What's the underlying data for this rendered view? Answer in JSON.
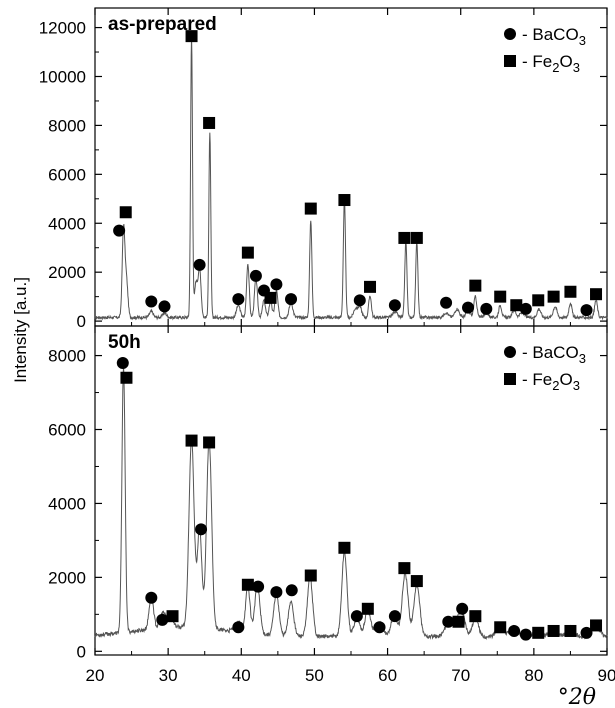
{
  "chart_data": [
    {
      "type": "line",
      "title": "as-prepared",
      "xlabel": "°2θ",
      "ylabel": "Intensity [a.u.]",
      "xlim": [
        20,
        90
      ],
      "ylim": [
        -200,
        12800
      ],
      "yticks": [
        0,
        2000,
        4000,
        6000,
        8000,
        10000,
        12000
      ],
      "grid": false,
      "legend_position": "top-right",
      "series": [
        {
          "type": "line",
          "baseline": 150,
          "peaks": [
            [
              23.9,
              3600,
              0.18
            ],
            [
              24.3,
              1500,
              0.2
            ],
            [
              27.7,
              250,
              0.25
            ],
            [
              29.5,
              200,
              0.25
            ],
            [
              33.2,
              11500,
              0.13
            ],
            [
              33.8,
              1400,
              0.2
            ],
            [
              34.3,
              2000,
              0.2
            ],
            [
              35.7,
              7600,
              0.13
            ],
            [
              39.6,
              500,
              0.25
            ],
            [
              40.9,
              2200,
              0.18
            ],
            [
              42.0,
              1600,
              0.2
            ],
            [
              43.1,
              700,
              0.2
            ],
            [
              44.0,
              650,
              0.2
            ],
            [
              44.8,
              1100,
              0.2
            ],
            [
              46.8,
              600,
              0.25
            ],
            [
              49.5,
              4000,
              0.15
            ],
            [
              54.1,
              4800,
              0.15
            ],
            [
              55.6,
              350,
              0.25
            ],
            [
              56.2,
              450,
              0.25
            ],
            [
              57.6,
              900,
              0.18
            ],
            [
              61.0,
              250,
              0.3
            ],
            [
              62.5,
              3100,
              0.15
            ],
            [
              64.0,
              3100,
              0.15
            ],
            [
              68.0,
              200,
              0.3
            ],
            [
              69.5,
              350,
              0.3
            ],
            [
              71.0,
              250,
              0.3
            ],
            [
              72.0,
              850,
              0.2
            ],
            [
              73.5,
              200,
              0.3
            ],
            [
              75.4,
              500,
              0.2
            ],
            [
              77.3,
              300,
              0.25
            ],
            [
              78.4,
              200,
              0.3
            ],
            [
              80.7,
              350,
              0.25
            ],
            [
              82.9,
              450,
              0.25
            ],
            [
              85.0,
              600,
              0.2
            ],
            [
              88.5,
              700,
              0.2
            ]
          ]
        }
      ],
      "markers": {
        "BaCO3": [
          [
            23.3,
            3700
          ],
          [
            27.7,
            800
          ],
          [
            29.5,
            600
          ],
          [
            34.3,
            2300
          ],
          [
            39.6,
            900
          ],
          [
            42.0,
            1850
          ],
          [
            43.1,
            1250
          ],
          [
            44.8,
            1500
          ],
          [
            46.8,
            900
          ],
          [
            56.2,
            850
          ],
          [
            61.0,
            650
          ],
          [
            68.0,
            750
          ],
          [
            71.0,
            550
          ],
          [
            73.5,
            500
          ],
          [
            78.9,
            500
          ],
          [
            87.2,
            450
          ]
        ],
        "Fe2O3": [
          [
            24.2,
            4450
          ],
          [
            33.2,
            11650
          ],
          [
            35.6,
            8100
          ],
          [
            40.9,
            2800
          ],
          [
            44.0,
            950
          ],
          [
            49.5,
            4600
          ],
          [
            54.1,
            4950
          ],
          [
            57.6,
            1400
          ],
          [
            62.3,
            3400
          ],
          [
            64.0,
            3400
          ],
          [
            72.0,
            1450
          ],
          [
            75.4,
            1000
          ],
          [
            77.6,
            650
          ],
          [
            80.6,
            850
          ],
          [
            82.7,
            1000
          ],
          [
            85.0,
            1200
          ],
          [
            88.5,
            1100
          ]
        ]
      },
      "legend": [
        {
          "marker": "circle",
          "prefix": "- BaCO",
          "sub1": "3",
          "mid": "",
          "sub2": ""
        },
        {
          "marker": "square",
          "prefix": "- Fe",
          "sub1": "2",
          "mid": "O",
          "sub2": "3"
        }
      ]
    },
    {
      "type": "line",
      "title": "50h",
      "xlabel": "°2θ",
      "ylabel": "Intensity [a.u.]",
      "xlim": [
        20,
        90
      ],
      "ylim": [
        -100,
        8800
      ],
      "yticks": [
        0,
        2000,
        4000,
        6000,
        8000
      ],
      "grid": false,
      "legend_position": "top-right",
      "series": [
        {
          "type": "line",
          "baseline": 400,
          "peaks": [
            [
              23.9,
              7200,
              0.22
            ],
            [
              27.7,
              900,
              0.3
            ],
            [
              29.3,
              400,
              0.4
            ],
            [
              30.3,
              300,
              0.4
            ],
            [
              33.2,
              5100,
              0.35
            ],
            [
              34.3,
              2700,
              0.3
            ],
            [
              35.6,
              5100,
              0.35
            ],
            [
              39.6,
              250,
              0.5
            ],
            [
              40.9,
              1250,
              0.3
            ],
            [
              42.2,
              1300,
              0.35
            ],
            [
              44.8,
              1150,
              0.35
            ],
            [
              46.8,
              950,
              0.35
            ],
            [
              49.4,
              1600,
              0.35
            ],
            [
              54.1,
              2300,
              0.35
            ],
            [
              55.8,
              500,
              0.4
            ],
            [
              57.3,
              700,
              0.4
            ],
            [
              58.9,
              350,
              0.5
            ],
            [
              60.9,
              600,
              0.4
            ],
            [
              62.4,
              1700,
              0.4
            ],
            [
              64.0,
              1400,
              0.4
            ],
            [
              68.3,
              350,
              0.5
            ],
            [
              69.4,
              350,
              0.5
            ],
            [
              70.2,
              550,
              0.45
            ],
            [
              72.0,
              500,
              0.4
            ],
            [
              75.4,
              300,
              0.5
            ],
            [
              77.3,
              250,
              0.5
            ],
            [
              80.5,
              200,
              0.5
            ],
            [
              82.8,
              200,
              0.5
            ],
            [
              85.0,
              250,
              0.5
            ],
            [
              88.5,
              300,
              0.5
            ]
          ]
        }
      ],
      "markers": {
        "BaCO3": [
          [
            23.8,
            7800
          ],
          [
            27.7,
            1450
          ],
          [
            29.2,
            850
          ],
          [
            34.5,
            3300
          ],
          [
            39.6,
            650
          ],
          [
            42.3,
            1750
          ],
          [
            44.8,
            1600
          ],
          [
            46.9,
            1650
          ],
          [
            55.8,
            950
          ],
          [
            58.9,
            650
          ],
          [
            61.0,
            950
          ],
          [
            68.3,
            800
          ],
          [
            70.2,
            1150
          ],
          [
            77.3,
            550
          ],
          [
            78.9,
            450
          ],
          [
            87.2,
            500
          ]
        ],
        "Fe2O3": [
          [
            24.3,
            7400
          ],
          [
            30.6,
            950
          ],
          [
            33.2,
            5700
          ],
          [
            35.6,
            5650
          ],
          [
            40.9,
            1800
          ],
          [
            49.5,
            2050
          ],
          [
            54.1,
            2800
          ],
          [
            57.3,
            1150
          ],
          [
            62.3,
            2250
          ],
          [
            64.0,
            1900
          ],
          [
            69.7,
            800
          ],
          [
            72.0,
            950
          ],
          [
            75.4,
            650
          ],
          [
            80.6,
            500
          ],
          [
            82.7,
            550
          ],
          [
            85.0,
            550
          ],
          [
            88.5,
            700
          ]
        ]
      },
      "legend": [
        {
          "marker": "circle",
          "prefix": "- BaCO",
          "sub1": "3",
          "mid": "",
          "sub2": ""
        },
        {
          "marker": "square",
          "prefix": "- Fe",
          "sub1": "2",
          "mid": "O",
          "sub2": "3"
        }
      ]
    }
  ]
}
